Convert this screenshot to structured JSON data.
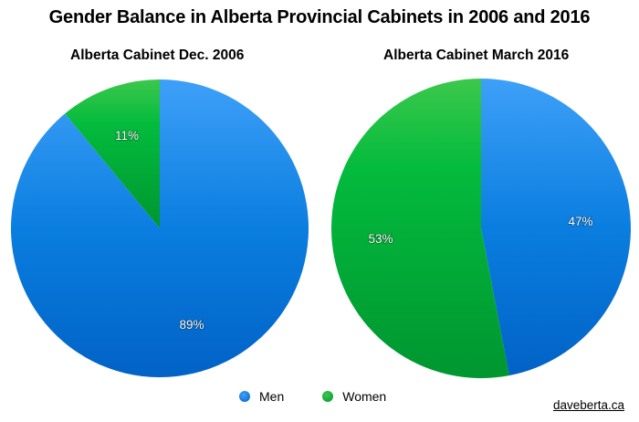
{
  "title": "Gender Balance in Alberta Provincial Cabinets in 2006 and 2016",
  "credit": "daveberta.ca",
  "legend": [
    {
      "label": "Men",
      "color": "#0a7ee0"
    },
    {
      "label": "Women",
      "color": "#05b13a"
    }
  ],
  "chart_data": [
    {
      "type": "pie",
      "title": "Alberta Cabinet Dec. 2006",
      "categories": [
        "Men",
        "Women"
      ],
      "values": [
        89,
        11
      ],
      "labels": [
        "89%",
        "11%"
      ],
      "colors": [
        "#0a7ee0",
        "#05b13a"
      ],
      "legend_position": "bottom"
    },
    {
      "type": "pie",
      "title": "Alberta Cabinet March 2016",
      "categories": [
        "Men",
        "Women"
      ],
      "values": [
        47,
        53
      ],
      "labels": [
        "47%",
        "53%"
      ],
      "colors": [
        "#0a7ee0",
        "#05b13a"
      ],
      "legend_position": "bottom"
    }
  ]
}
